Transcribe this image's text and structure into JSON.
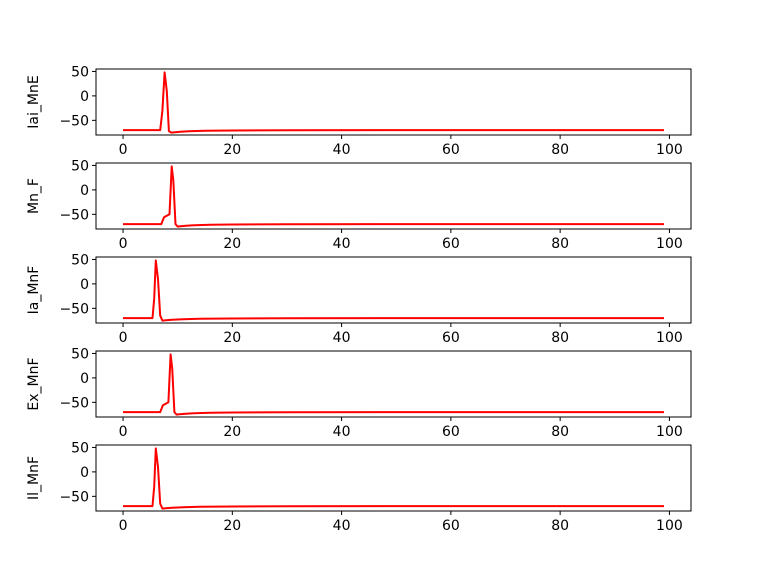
{
  "chart_data": [
    {
      "type": "line",
      "ylabel": "Iai_MnE",
      "xlim": [
        -4.95,
        103.95
      ],
      "ylim": [
        -80,
        55
      ],
      "xticks": [
        0,
        20,
        40,
        60,
        80,
        100
      ],
      "yticks": [
        50,
        0,
        -50
      ],
      "color": "#ff0000",
      "series": [
        {
          "x": [
            0,
            6.8,
            7.2,
            7.6,
            8.0,
            8.4,
            8.8,
            9.5,
            10.5,
            12,
            15,
            20,
            30,
            99
          ],
          "y": [
            -70,
            -70,
            -30,
            48,
            10,
            -72,
            -75,
            -74.5,
            -73.5,
            -72.5,
            -71.5,
            -70.8,
            -70.2,
            -70
          ]
        }
      ]
    },
    {
      "type": "line",
      "ylabel": "Mn_F",
      "xlim": [
        -4.95,
        103.95
      ],
      "ylim": [
        -80,
        55
      ],
      "xticks": [
        0,
        20,
        40,
        60,
        80,
        100
      ],
      "yticks": [
        50,
        0,
        -50
      ],
      "color": "#ff0000",
      "series": [
        {
          "x": [
            0,
            7.0,
            7.5,
            8.0,
            8.5,
            8.9,
            9.2,
            9.6,
            10.0,
            10.5,
            11.5,
            13,
            16,
            20,
            30,
            99
          ],
          "y": [
            -70,
            -70,
            -56,
            -53,
            -50,
            48,
            20,
            -70,
            -75,
            -74.5,
            -73.5,
            -72.5,
            -71.5,
            -70.8,
            -70.2,
            -70
          ]
        }
      ]
    },
    {
      "type": "line",
      "ylabel": "Ia_MnF",
      "xlim": [
        -4.95,
        103.95
      ],
      "ylim": [
        -80,
        55
      ],
      "xticks": [
        0,
        20,
        40,
        60,
        80,
        100
      ],
      "yticks": [
        50,
        0,
        -50
      ],
      "color": "#ff0000",
      "series": [
        {
          "x": [
            0,
            5.4,
            5.7,
            6.0,
            6.4,
            6.8,
            7.2,
            7.8,
            9,
            11,
            14,
            20,
            30,
            99
          ],
          "y": [
            -70,
            -70,
            -30,
            48,
            10,
            -65,
            -75,
            -74.5,
            -73.5,
            -72.5,
            -71.5,
            -70.8,
            -70.2,
            -70
          ]
        }
      ]
    },
    {
      "type": "line",
      "ylabel": "Ex_MnF",
      "xlim": [
        -4.95,
        103.95
      ],
      "ylim": [
        -80,
        55
      ],
      "xticks": [
        0,
        20,
        40,
        60,
        80,
        100
      ],
      "yticks": [
        50,
        0,
        -50
      ],
      "color": "#ff0000",
      "series": [
        {
          "x": [
            0,
            6.8,
            7.3,
            7.8,
            8.3,
            8.7,
            9.0,
            9.4,
            9.8,
            10.3,
            11.5,
            13,
            16,
            20,
            30,
            99
          ],
          "y": [
            -70,
            -70,
            -56,
            -53,
            -50,
            48,
            20,
            -70,
            -75,
            -74.5,
            -73.5,
            -72.5,
            -71.5,
            -70.8,
            -70.2,
            -70
          ]
        }
      ]
    },
    {
      "type": "line",
      "ylabel": "Il_MnF",
      "xlim": [
        -4.95,
        103.95
      ],
      "ylim": [
        -80,
        55
      ],
      "xticks": [
        0,
        20,
        40,
        60,
        80,
        100
      ],
      "yticks": [
        50,
        0,
        -50
      ],
      "color": "#ff0000",
      "series": [
        {
          "x": [
            0,
            5.4,
            5.7,
            6.0,
            6.4,
            6.8,
            7.2,
            7.8,
            9,
            11,
            14,
            20,
            30,
            99
          ],
          "y": [
            -70,
            -70,
            -30,
            48,
            10,
            -65,
            -75,
            -74.5,
            -73.5,
            -72.5,
            -71.5,
            -70.8,
            -70.2,
            -70
          ]
        }
      ]
    }
  ]
}
